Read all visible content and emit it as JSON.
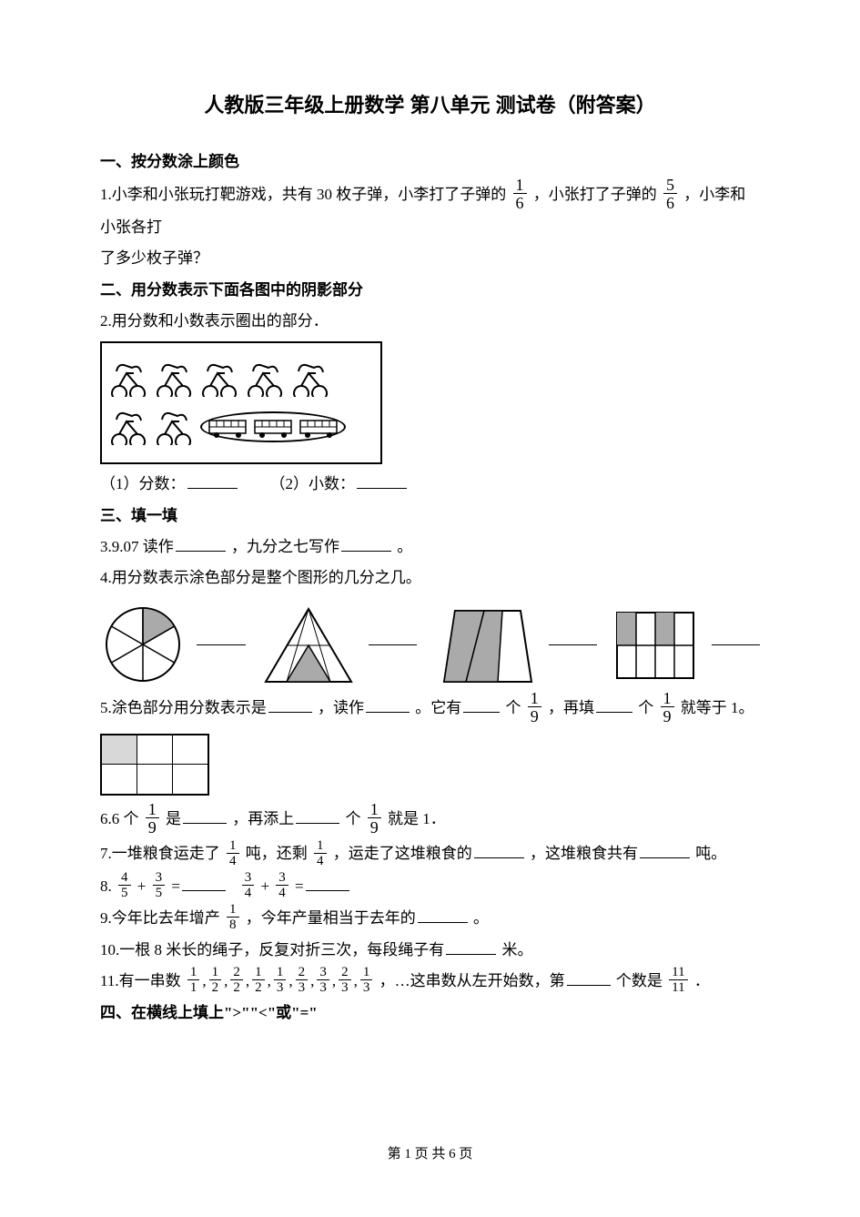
{
  "title": "人教版三年级上册数学 第八单元 测试卷（附答案）",
  "section1": "一、按分数涂上颜色",
  "q1_a": "1.小李和小张玩打靶游戏，共有 30 枚子弹，小李打了子弹的",
  "q1_frac1_n": "1",
  "q1_frac1_d": "6",
  "q1_b": "，小张打了子弹的",
  "q1_frac2_n": "5",
  "q1_frac2_d": "6",
  "q1_c": "，小李和小张各打",
  "q1_d": "了多少枚子弹？",
  "section2": "二、用分数表示下面各图中的阴影部分",
  "q2": "2.用分数和小数表示圈出的部分．",
  "q2_blanks_a": "（1）分数：",
  "q2_blanks_b": "（2）小数：",
  "section3": "三、填一填",
  "q3_a": "3.9.07 读作",
  "q3_b": "，九分之七写作",
  "q3_c": "。",
  "q4": "4.用分数表示涂色部分是整个图形的几分之几。",
  "q5_a": "5.涂色部分用分数表示是",
  "q5_b": "，读作",
  "q5_c": "。它有",
  "q5_d": "个",
  "q5_frac_n": "1",
  "q5_frac_d": "9",
  "q5_e": "，再填",
  "q5_f": "个",
  "q5_g": "就等于 1。",
  "q6_a": "6.6 个",
  "q6_frac1_n": "1",
  "q6_frac1_d": "9",
  "q6_b": "是",
  "q6_c": "，再添上",
  "q6_d": "个",
  "q6_frac2_n": "1",
  "q6_frac2_d": "9",
  "q6_e": "就是 1．",
  "q7_a": "7.一堆粮食运走了",
  "q7_frac1_n": "1",
  "q7_frac1_d": "4",
  "q7_b": "吨，还剩",
  "q7_frac2_n": "1",
  "q7_frac2_d": "4",
  "q7_c": "，运走了这堆粮食的",
  "q7_d": "，这堆粮食共有",
  "q7_e": "吨。",
  "q8_a": "8.",
  "q8_f1_n": "4",
  "q8_f1_d": "5",
  "q8_plus": "+",
  "q8_f2_n": "3",
  "q8_f2_d": "5",
  "q8_eq": "=",
  "q8_f3_n": "3",
  "q8_f3_d": "4",
  "q8_f4_n": "3",
  "q8_f4_d": "4",
  "q9_a": "9.今年比去年增产",
  "q9_frac_n": "1",
  "q9_frac_d": "8",
  "q9_b": "，今年产量相当于去年的",
  "q9_c": "。",
  "q10_a": "10.一根 8 米长的绳子，反复对折三次，每段绳子有",
  "q10_b": "米。",
  "q11_a": "11.有一串数",
  "q11_fracs": [
    {
      "n": "1",
      "d": "1"
    },
    {
      "n": "1",
      "d": "2"
    },
    {
      "n": "2",
      "d": "2"
    },
    {
      "n": "1",
      "d": "2"
    },
    {
      "n": "1",
      "d": "3"
    },
    {
      "n": "2",
      "d": "3"
    },
    {
      "n": "3",
      "d": "3"
    },
    {
      "n": "2",
      "d": "3"
    },
    {
      "n": "1",
      "d": "3"
    }
  ],
  "q11_b": "，…这串数从左开始数，第",
  "q11_c": " 个数是",
  "q11_last_n": "11",
  "q11_last_d": "11",
  "q11_d": "．",
  "section4": "四、在横线上填上\">\"\"<\"或\"=\"",
  "footer": "第 1 页 共 6 页"
}
